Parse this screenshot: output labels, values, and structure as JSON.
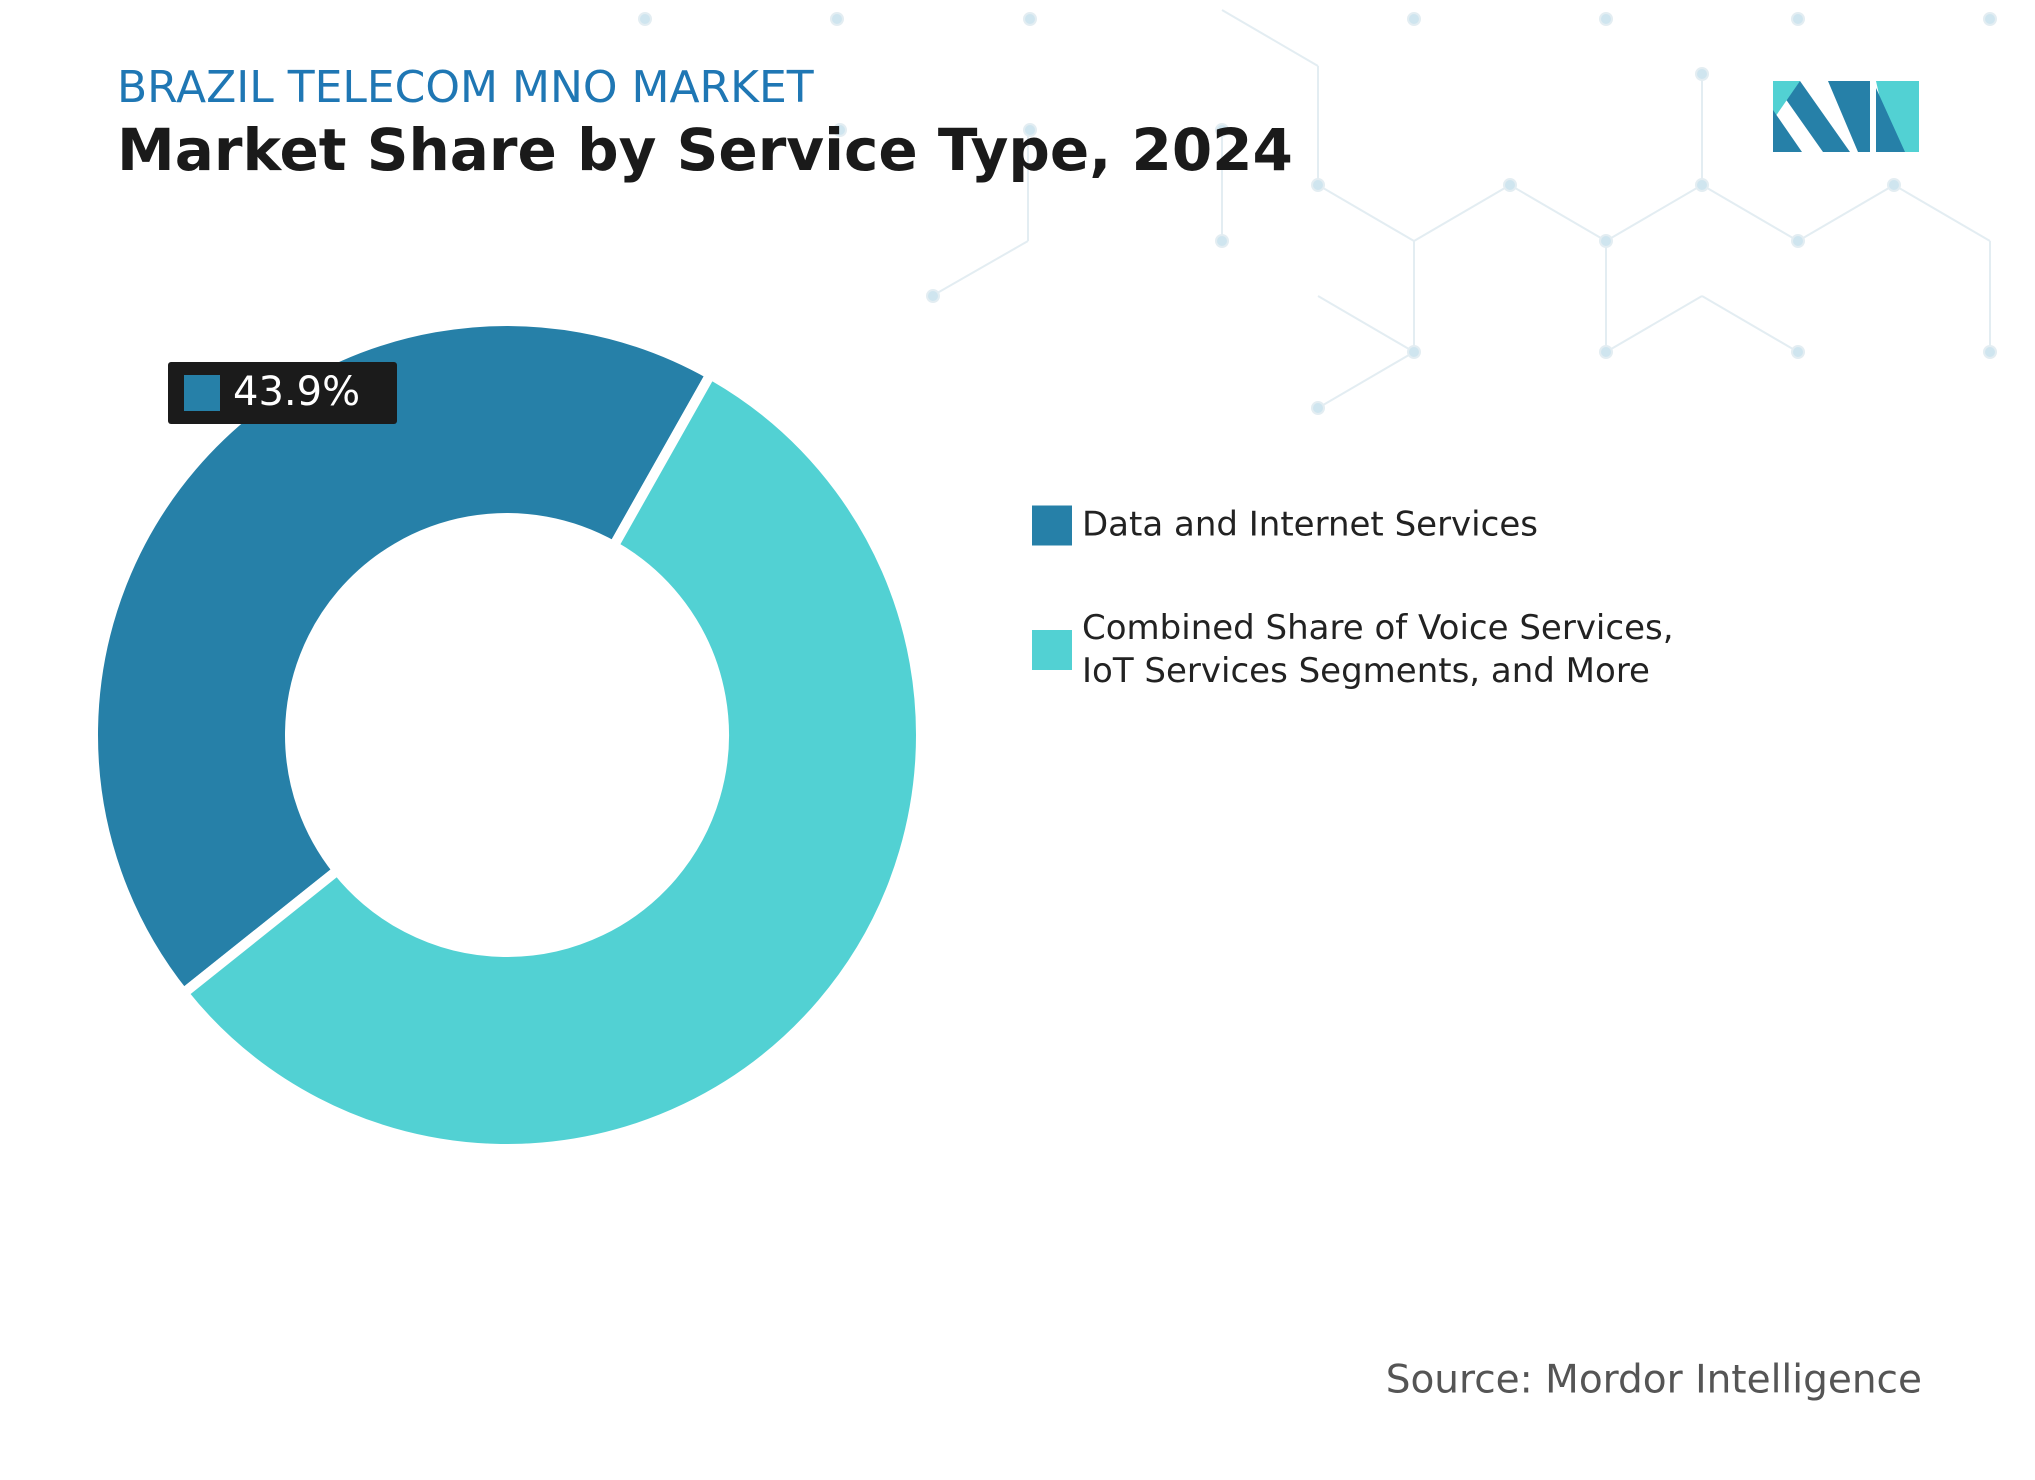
{
  "chart_data": {
    "type": "donut",
    "supertitle": "BRAZIL TELECOM MNO MARKET",
    "title": "Market Share by Service Type, 2024",
    "categories": [
      "Data and Internet Services",
      "Combined Share of Voice Services, IoT Services Segments, and More"
    ],
    "values": [
      43.9,
      56.1
    ],
    "value_labels": [
      "43.9%",
      null
    ],
    "colors": [
      "#2680a8",
      "#52d1d3"
    ],
    "source": "Source: Mordor Intelligence"
  }
}
